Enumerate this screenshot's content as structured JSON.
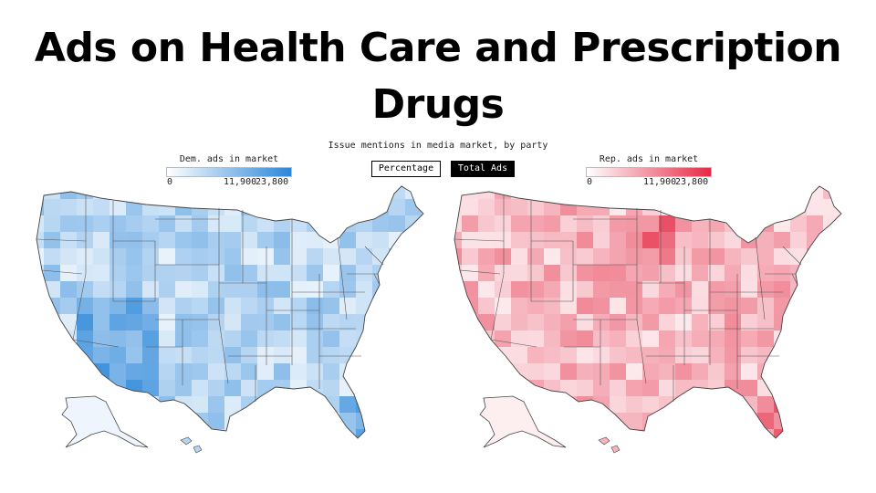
{
  "title": {
    "line1": "Ads on Health Care and Prescription",
    "line2": "Drugs"
  },
  "subtitle": "Issue mentions in media market, by party",
  "toggle": {
    "percentage_label": "Percentage",
    "total_label": "Total Ads",
    "selected": "Total Ads"
  },
  "legends": {
    "dem": {
      "title": "Dem. ads in market",
      "ticks": [
        "0",
        "11,900",
        "23,800"
      ],
      "min_color": "#ffffff",
      "max_color": "#2b86d9"
    },
    "rep": {
      "title": "Rep. ads in market",
      "ticks": [
        "0",
        "11,900",
        "23,800"
      ],
      "min_color": "#ffffff",
      "max_color": "#e52a45"
    }
  },
  "maps": {
    "dem": {
      "color_low": "#ffffff",
      "color_high": "#2b86d9"
    },
    "rep": {
      "color_low": "#ffffff",
      "color_high": "#e52a45"
    }
  }
}
